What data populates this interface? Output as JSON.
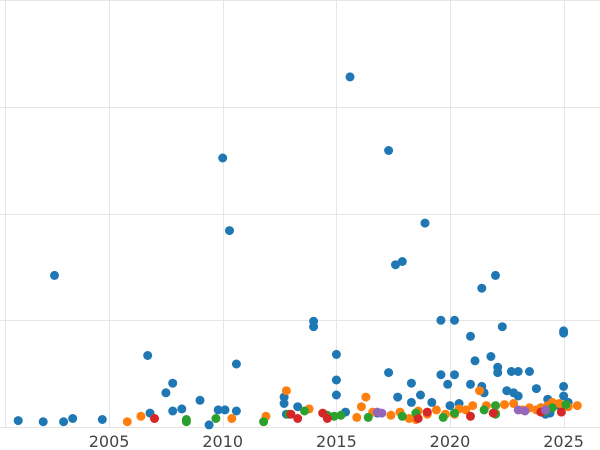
{
  "chart_data": {
    "type": "scatter",
    "title": "",
    "xlabel": "",
    "ylabel": "",
    "xlim": [
      2000.2,
      2026.6
    ],
    "ylim": [
      0,
      40
    ],
    "x_ticks": [
      2005,
      2010,
      2015,
      2020,
      2025
    ],
    "x_tick_labels": [
      "2005",
      "2010",
      "2015",
      "2020",
      "2025"
    ],
    "y_gridlines": [
      0,
      10,
      20,
      30,
      40
    ],
    "grid": true,
    "legend": "none",
    "series": [
      {
        "color": "#1f77b4",
        "points": [
          [
            2001.0,
            0.6
          ],
          [
            2002.1,
            0.5
          ],
          [
            2002.6,
            14.2
          ],
          [
            2003.0,
            0.5
          ],
          [
            2003.4,
            0.8
          ],
          [
            2004.7,
            0.7
          ],
          [
            2006.7,
            6.7
          ],
          [
            2006.8,
            1.3
          ],
          [
            2007.5,
            3.2
          ],
          [
            2007.8,
            4.1
          ],
          [
            2007.8,
            1.5
          ],
          [
            2008.2,
            1.7
          ],
          [
            2009.0,
            2.5
          ],
          [
            2009.4,
            0.2
          ],
          [
            2009.8,
            1.6
          ],
          [
            2010.0,
            25.2
          ],
          [
            2010.1,
            1.6
          ],
          [
            2010.3,
            18.4
          ],
          [
            2010.6,
            5.9
          ],
          [
            2010.6,
            1.5
          ],
          [
            2012.7,
            2.8
          ],
          [
            2012.7,
            2.2
          ],
          [
            2012.8,
            1.2
          ],
          [
            2013.3,
            1.9
          ],
          [
            2014.0,
            9.9
          ],
          [
            2014.0,
            9.4
          ],
          [
            2015.0,
            6.8
          ],
          [
            2015.0,
            4.4
          ],
          [
            2015.0,
            3.0
          ],
          [
            2015.4,
            1.4
          ],
          [
            2015.6,
            32.8
          ],
          [
            2016.8,
            1.3
          ],
          [
            2017.3,
            25.9
          ],
          [
            2017.3,
            5.1
          ],
          [
            2017.6,
            15.2
          ],
          [
            2017.7,
            2.8
          ],
          [
            2017.9,
            15.5
          ],
          [
            2018.3,
            4.1
          ],
          [
            2018.3,
            2.3
          ],
          [
            2018.7,
            3.0
          ],
          [
            2018.9,
            19.1
          ],
          [
            2019.2,
            2.3
          ],
          [
            2019.6,
            10.0
          ],
          [
            2019.6,
            4.9
          ],
          [
            2019.9,
            4.0
          ],
          [
            2020.0,
            2.0
          ],
          [
            2020.2,
            10.0
          ],
          [
            2020.2,
            4.9
          ],
          [
            2020.4,
            2.2
          ],
          [
            2020.9,
            8.5
          ],
          [
            2020.9,
            4.0
          ],
          [
            2021.1,
            6.2
          ],
          [
            2021.4,
            13.0
          ],
          [
            2021.4,
            3.8
          ],
          [
            2021.5,
            3.2
          ],
          [
            2022.0,
            14.2
          ],
          [
            2021.8,
            6.6
          ],
          [
            2022.1,
            5.6
          ],
          [
            2022.1,
            5.1
          ],
          [
            2022.3,
            9.4
          ],
          [
            2022.5,
            3.4
          ],
          [
            2022.7,
            5.2
          ],
          [
            2022.8,
            3.2
          ],
          [
            2023.0,
            2.9
          ],
          [
            2023.0,
            5.2
          ],
          [
            2023.5,
            5.2
          ],
          [
            2023.8,
            3.6
          ],
          [
            2024.0,
            1.8
          ],
          [
            2024.2,
            1.2
          ],
          [
            2024.3,
            2.6
          ],
          [
            2024.4,
            1.3
          ],
          [
            2024.8,
            2.0
          ],
          [
            2025.0,
            9.0
          ],
          [
            2025.0,
            3.8
          ],
          [
            2025.0,
            2.9
          ],
          [
            2025.0,
            8.8
          ],
          [
            2025.2,
            2.3
          ]
        ]
      },
      {
        "color": "#ff7f0e",
        "points": [
          [
            2005.8,
            0.5
          ],
          [
            2006.4,
            1.0
          ],
          [
            2007.0,
            0.8
          ],
          [
            2010.4,
            0.8
          ],
          [
            2011.9,
            1.0
          ],
          [
            2012.8,
            3.4
          ],
          [
            2013.8,
            1.7
          ],
          [
            2015.9,
            0.9
          ],
          [
            2016.1,
            1.9
          ],
          [
            2016.3,
            2.8
          ],
          [
            2016.6,
            1.4
          ],
          [
            2017.4,
            1.1
          ],
          [
            2017.8,
            1.4
          ],
          [
            2018.2,
            0.8
          ],
          [
            2018.5,
            0.7
          ],
          [
            2018.6,
            1.5
          ],
          [
            2019.0,
            1.2
          ],
          [
            2019.4,
            1.6
          ],
          [
            2019.8,
            1.2
          ],
          [
            2020.2,
            1.2
          ],
          [
            2020.4,
            1.7
          ],
          [
            2020.7,
            1.6
          ],
          [
            2021.0,
            2.0
          ],
          [
            2021.3,
            3.4
          ],
          [
            2021.6,
            2.0
          ],
          [
            2022.0,
            1.3
          ],
          [
            2022.4,
            2.1
          ],
          [
            2022.8,
            2.2
          ],
          [
            2023.2,
            1.6
          ],
          [
            2023.5,
            1.8
          ],
          [
            2023.8,
            1.6
          ],
          [
            2024.0,
            1.8
          ],
          [
            2024.3,
            2.0
          ],
          [
            2024.5,
            2.3
          ],
          [
            2024.8,
            2.2
          ],
          [
            2025.0,
            2.0
          ],
          [
            2025.2,
            1.9
          ],
          [
            2025.6,
            2.0
          ]
        ]
      },
      {
        "color": "#2ca02c",
        "points": [
          [
            2008.4,
            0.7
          ],
          [
            2008.4,
            0.5
          ],
          [
            2009.7,
            0.8
          ],
          [
            2011.8,
            0.5
          ],
          [
            2012.9,
            1.2
          ],
          [
            2013.6,
            1.5
          ],
          [
            2014.6,
            1.1
          ],
          [
            2014.9,
            1.0
          ],
          [
            2015.2,
            1.1
          ],
          [
            2016.4,
            0.9
          ],
          [
            2017.9,
            1.0
          ],
          [
            2018.5,
            1.3
          ],
          [
            2019.7,
            0.9
          ],
          [
            2020.2,
            1.3
          ],
          [
            2021.5,
            1.6
          ],
          [
            2022.0,
            2.0
          ],
          [
            2022.0,
            1.2
          ],
          [
            2024.2,
            1.5
          ],
          [
            2024.5,
            1.8
          ],
          [
            2025.1,
            2.1
          ]
        ]
      },
      {
        "color": "#d62728",
        "points": [
          [
            2007.0,
            0.8
          ],
          [
            2013.0,
            1.2
          ],
          [
            2013.3,
            0.8
          ],
          [
            2014.4,
            1.3
          ],
          [
            2014.6,
            0.8
          ],
          [
            2018.6,
            0.8
          ],
          [
            2019.0,
            1.4
          ],
          [
            2020.9,
            1.0
          ],
          [
            2021.9,
            1.3
          ],
          [
            2024.0,
            1.4
          ],
          [
            2024.9,
            1.4
          ]
        ]
      },
      {
        "color": "#9467bd",
        "points": [
          [
            2016.8,
            1.4
          ],
          [
            2017.0,
            1.3
          ],
          [
            2023.0,
            1.6
          ],
          [
            2023.3,
            1.5
          ],
          [
            2024.2,
            1.6
          ]
        ]
      }
    ]
  }
}
